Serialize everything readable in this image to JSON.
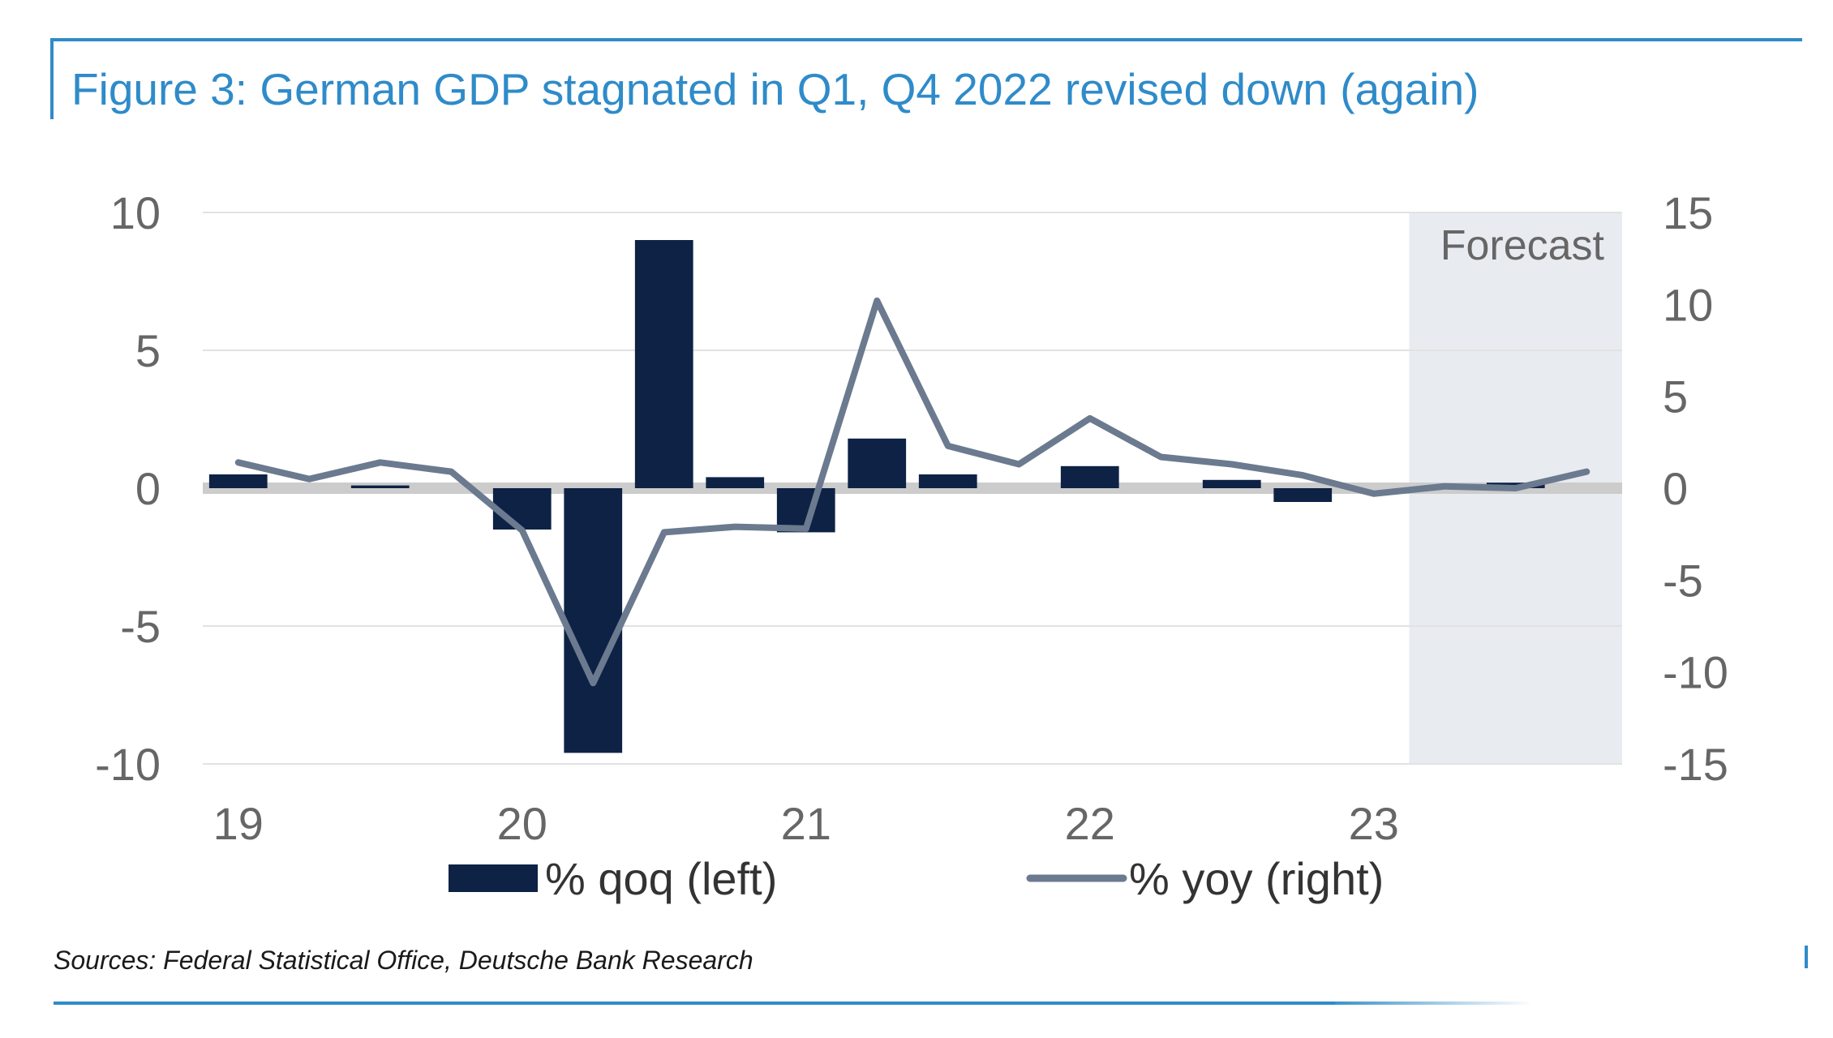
{
  "header": {
    "title": "Figure 3: German GDP stagnated in Q1, Q4 2022 revised down (again)"
  },
  "footer": {
    "sources": "Sources: Federal Statistical Office, Deutsche Bank Research"
  },
  "colors": {
    "accent": "#2f8bc9",
    "bars": "#0e2245",
    "line": "#6b7a8f",
    "forecast_band": "#e8ebf0",
    "zero_line": "#cccccc",
    "grid": "#e2e2e2",
    "axis_text": "#666666"
  },
  "chart_data": {
    "type": "bar",
    "title": "Figure 3: German GDP stagnated in Q1, Q4 2022 revised down (again)",
    "x_period_labels": [
      "19",
      "20",
      "21",
      "22",
      "23"
    ],
    "quarters": [
      "19Q1",
      "19Q2",
      "19Q3",
      "19Q4",
      "20Q1",
      "20Q2",
      "20Q3",
      "20Q4",
      "21Q1",
      "21Q2",
      "21Q3",
      "21Q4",
      "22Q1",
      "22Q2",
      "22Q3",
      "22Q4",
      "23Q1",
      "23Q2",
      "23Q3",
      "23Q4"
    ],
    "left_axis": {
      "ylim": [
        -10,
        10
      ],
      "ticks": [
        "10",
        "5",
        "0",
        "-5",
        "-10"
      ]
    },
    "right_axis": {
      "ylim": [
        -15,
        15
      ],
      "ticks": [
        "15",
        "10",
        "5",
        "0",
        "-5",
        "-10",
        "-15"
      ]
    },
    "forecast_label": "Forecast",
    "forecast_start": "23Q2",
    "grid": true,
    "legend_position": "bottom",
    "series": [
      {
        "name": "% qoq (left)",
        "type": "bar",
        "axis": "left",
        "values": [
          0.5,
          0.0,
          0.1,
          0.0,
          -1.5,
          -9.6,
          9.0,
          0.4,
          -1.6,
          1.8,
          0.5,
          0.0,
          0.8,
          0.0,
          0.3,
          -0.5,
          0.0,
          0.0,
          0.2,
          0.0
        ]
      },
      {
        "name": "% yoy (right)",
        "type": "line",
        "axis": "right",
        "values": [
          1.4,
          0.5,
          1.4,
          0.9,
          -2.3,
          -10.6,
          -2.4,
          -2.1,
          -2.2,
          10.2,
          2.3,
          1.3,
          3.8,
          1.7,
          1.3,
          0.7,
          -0.3,
          0.1,
          0.0,
          0.9
        ]
      }
    ]
  }
}
